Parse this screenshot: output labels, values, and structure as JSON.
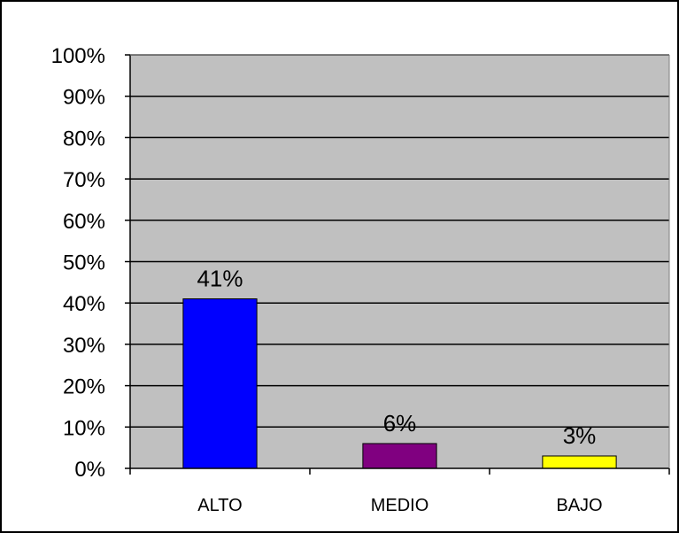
{
  "chart_data": {
    "type": "bar",
    "title": "",
    "xlabel": "",
    "ylabel": "",
    "categories": [
      "ALTO",
      "MEDIO",
      "BAJO"
    ],
    "values": [
      41,
      6,
      3
    ],
    "data_labels": [
      "41%",
      "6%",
      "3%"
    ],
    "bar_colors": [
      "#0000FF",
      "#800080",
      "#FFFF00"
    ],
    "plot_background": "#C0C0C0",
    "ylim": [
      0,
      100
    ],
    "y_ticks": [
      0,
      10,
      20,
      30,
      40,
      50,
      60,
      70,
      80,
      90,
      100
    ],
    "y_tick_labels": [
      "0%",
      "10%",
      "20%",
      "30%",
      "40%",
      "50%",
      "60%",
      "70%",
      "80%",
      "90%",
      "100%"
    ],
    "grid": true,
    "legend": "none"
  }
}
